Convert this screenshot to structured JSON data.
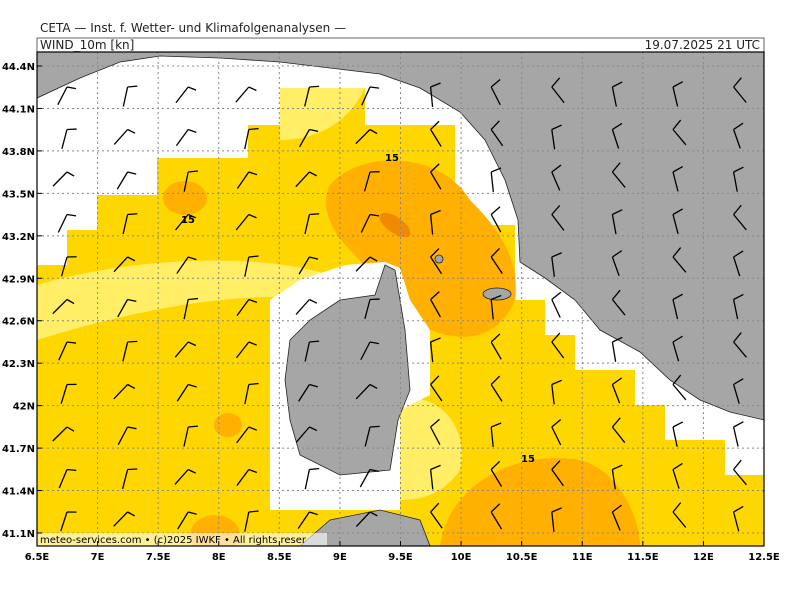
{
  "header": {
    "source": "CETA — Inst. f. Wetter- und Klimafolgenanalysen —",
    "field": "WIND_10m [kn]",
    "time": "19.07.2025 21 UTC"
  },
  "map": {
    "lat_ticks": [
      {
        "value": 44.4,
        "label": "44.4N"
      },
      {
        "value": 44.1,
        "label": "44.1N"
      },
      {
        "value": 43.8,
        "label": "43.8N"
      },
      {
        "value": 43.5,
        "label": "43.5N"
      },
      {
        "value": 43.2,
        "label": "43.2N"
      },
      {
        "value": 42.9,
        "label": "42.9N"
      },
      {
        "value": 42.6,
        "label": "42.6N"
      },
      {
        "value": 42.3,
        "label": "42.3N"
      },
      {
        "value": 42,
        "label": "42N"
      },
      {
        "value": 41.7,
        "label": "41.7N"
      },
      {
        "value": 41.4,
        "label": "41.4N"
      },
      {
        "value": 41.1,
        "label": "41.1N"
      }
    ],
    "lon_ticks": [
      {
        "value": 6.5,
        "label": "6.5E"
      },
      {
        "value": 7,
        "label": "7E"
      },
      {
        "value": 7.5,
        "label": "7.5E"
      },
      {
        "value": 8,
        "label": "8E"
      },
      {
        "value": 8.5,
        "label": "8.5E"
      },
      {
        "value": 9,
        "label": "9E"
      },
      {
        "value": 9.5,
        "label": "9.5E"
      },
      {
        "value": 10,
        "label": "10E"
      },
      {
        "value": 10.5,
        "label": "10.5E"
      },
      {
        "value": 11,
        "label": "11E"
      },
      {
        "value": 11.5,
        "label": "11.5E"
      },
      {
        "value": 12,
        "label": "12E"
      },
      {
        "value": 12.5,
        "label": "12.5E"
      }
    ],
    "contour_labels": [
      "15",
      "15",
      "15"
    ],
    "credit": "meteo-services.com • (c)2025 IWKF • All rights reser"
  }
}
